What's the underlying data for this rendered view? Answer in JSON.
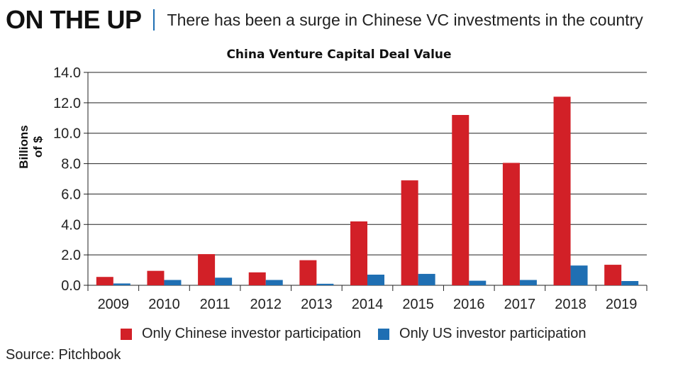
{
  "header": {
    "title": "ON THE UP",
    "subtitle": "There has been a surge in Chinese VC investments in the country"
  },
  "source": "Source: Pitchbook",
  "colors": {
    "chinese": "#d22027",
    "us": "#1f6fb3",
    "axis": "#222222",
    "grid": "#222222"
  },
  "chart_data": {
    "type": "bar",
    "title": "China Venture Capital Deal Value",
    "xlabel": "",
    "ylabel": "Billions of $",
    "ylim": [
      0,
      14
    ],
    "yticks": [
      0,
      2,
      4,
      6,
      8,
      10,
      12,
      14
    ],
    "ytick_labels": [
      "0.0",
      "2.0",
      "4.0",
      "6.0",
      "8.0",
      "10.0",
      "12.0",
      "14.0"
    ],
    "categories": [
      "2009",
      "2010",
      "2011",
      "2012",
      "2013",
      "2014",
      "2015",
      "2016",
      "2017",
      "2018",
      "2019"
    ],
    "series": [
      {
        "name": "Only Chinese investor participation",
        "values": [
          0.55,
          0.95,
          2.05,
          0.85,
          1.65,
          4.2,
          6.9,
          11.2,
          8.05,
          12.4,
          1.35
        ]
      },
      {
        "name": "Only US investor participation",
        "values": [
          0.12,
          0.35,
          0.5,
          0.35,
          0.1,
          0.7,
          0.75,
          0.3,
          0.35,
          1.3,
          0.28
        ]
      }
    ],
    "legend_position": "bottom"
  }
}
